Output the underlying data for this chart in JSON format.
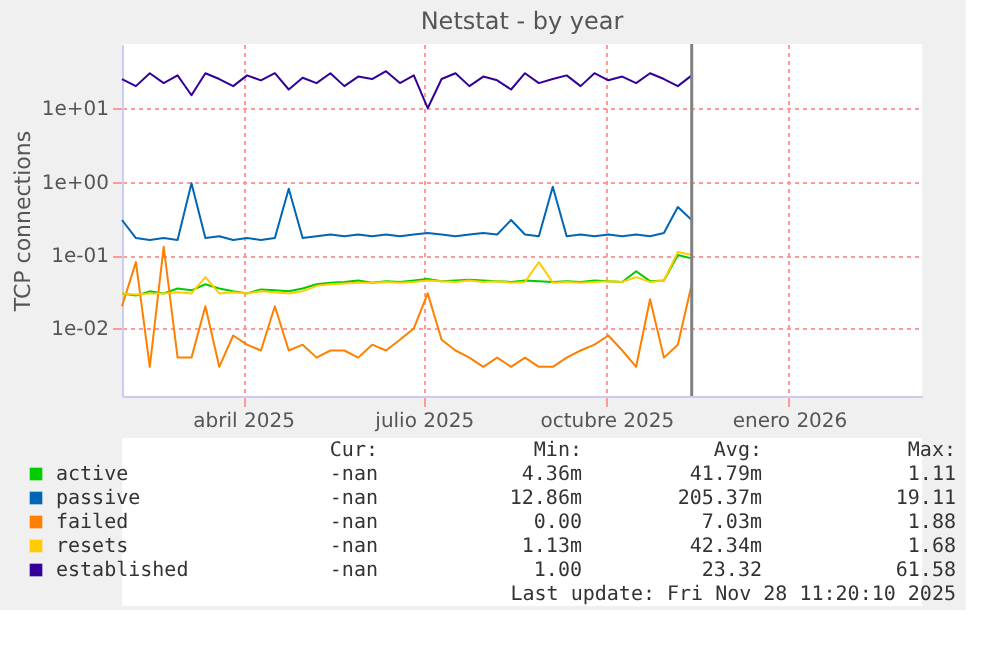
{
  "chart_data": {
    "type": "line",
    "title": "Netstat - by year",
    "ylabel": "TCP connections",
    "x": [
      "2025-02-14",
      "2025-02-21",
      "2025-02-28",
      "2025-03-07",
      "2025-03-14",
      "2025-03-21",
      "2025-03-28",
      "2025-04-04",
      "2025-04-11",
      "2025-04-18",
      "2025-04-25",
      "2025-05-02",
      "2025-05-09",
      "2025-05-16",
      "2025-05-23",
      "2025-05-30",
      "2025-06-06",
      "2025-06-13",
      "2025-06-20",
      "2025-06-27",
      "2025-07-04",
      "2025-07-11",
      "2025-07-18",
      "2025-07-25",
      "2025-08-01",
      "2025-08-08",
      "2025-08-15",
      "2025-08-22",
      "2025-08-29",
      "2025-09-05",
      "2025-09-12",
      "2025-09-19",
      "2025-09-26",
      "2025-10-03",
      "2025-10-10",
      "2025-10-17",
      "2025-10-24",
      "2025-10-31",
      "2025-11-07",
      "2025-11-14",
      "2025-11-21",
      "2025-11-28"
    ],
    "series": [
      {
        "name": "active",
        "color": "#00cc00",
        "values": [
          0.03,
          0.028,
          0.032,
          0.03,
          0.035,
          0.033,
          0.04,
          0.035,
          0.032,
          0.03,
          0.034,
          0.033,
          0.032,
          0.035,
          0.04,
          0.042,
          0.043,
          0.045,
          0.042,
          0.044,
          0.043,
          0.045,
          0.047,
          0.044,
          0.045,
          0.046,
          0.045,
          0.044,
          0.043,
          0.045,
          0.044,
          0.043,
          0.044,
          0.043,
          0.045,
          0.044,
          0.043,
          0.06,
          0.044,
          0.045,
          0.1,
          0.09
        ]
      },
      {
        "name": "passive",
        "color": "#0066b3",
        "values": [
          0.3,
          0.17,
          0.16,
          0.17,
          0.16,
          0.95,
          0.17,
          0.18,
          0.16,
          0.17,
          0.16,
          0.17,
          0.8,
          0.17,
          0.18,
          0.19,
          0.18,
          0.19,
          0.18,
          0.19,
          0.18,
          0.19,
          0.2,
          0.19,
          0.18,
          0.19,
          0.2,
          0.19,
          0.3,
          0.19,
          0.18,
          0.85,
          0.18,
          0.19,
          0.18,
          0.19,
          0.18,
          0.19,
          0.18,
          0.2,
          0.45,
          0.3
        ]
      },
      {
        "name": "failed",
        "color": "#ff8000",
        "values": [
          0.02,
          0.08,
          0.003,
          0.13,
          0.004,
          0.004,
          0.02,
          0.003,
          0.008,
          0.006,
          0.005,
          0.02,
          0.005,
          0.006,
          0.004,
          0.005,
          0.005,
          0.004,
          0.006,
          0.005,
          0.007,
          0.01,
          0.03,
          0.007,
          0.005,
          0.004,
          0.003,
          0.004,
          0.003,
          0.004,
          0.003,
          0.003,
          0.004,
          0.005,
          0.006,
          0.008,
          0.005,
          0.003,
          0.025,
          0.004,
          0.006,
          0.04
        ]
      },
      {
        "name": "resets",
        "color": "#ffcc00",
        "values": [
          0.03,
          0.029,
          0.03,
          0.03,
          0.031,
          0.03,
          0.05,
          0.03,
          0.031,
          0.03,
          0.032,
          0.031,
          0.03,
          0.032,
          0.038,
          0.04,
          0.041,
          0.042,
          0.042,
          0.043,
          0.042,
          0.043,
          0.045,
          0.044,
          0.043,
          0.045,
          0.043,
          0.044,
          0.042,
          0.043,
          0.08,
          0.042,
          0.043,
          0.042,
          0.043,
          0.044,
          0.043,
          0.05,
          0.043,
          0.045,
          0.11,
          0.1
        ]
      },
      {
        "name": "established",
        "color": "#330099",
        "values": [
          25,
          20,
          30,
          22,
          28,
          15,
          30,
          25,
          20,
          28,
          24,
          30,
          18,
          26,
          22,
          30,
          20,
          27,
          25,
          32,
          22,
          28,
          10,
          25,
          30,
          20,
          27,
          24,
          18,
          30,
          22,
          25,
          28,
          20,
          30,
          24,
          27,
          22,
          30,
          25,
          20,
          28
        ]
      }
    ],
    "xlim": [
      "2025-02-14",
      "2026-03-24"
    ],
    "xticks": [
      {
        "value": "2025-04-16",
        "label": "abril 2025"
      },
      {
        "value": "2025-07-16",
        "label": "julio 2025"
      },
      {
        "value": "2025-10-16",
        "label": "octubre 2025"
      },
      {
        "value": "2026-01-16",
        "label": "enero 2026"
      }
    ],
    "ylim": [
      0.0012,
      75
    ],
    "yticks": [
      {
        "value": 0.01,
        "label": "1e-02"
      },
      {
        "value": 0.1,
        "label": "1e-01"
      },
      {
        "value": 1,
        "label": "1e+00"
      },
      {
        "value": 10,
        "label": "1e+01"
      }
    ],
    "log": true,
    "grid": true,
    "marker": "none",
    "line_style": "solid",
    "legend": "bottom",
    "ref_lines": [
      {
        "axis": "x",
        "value": "2025-11-28",
        "color": "#808080"
      }
    ],
    "annotations": [
      "Cur:",
      "Min:",
      "Avg:",
      "Max:",
      "-nan",
      "4.36m",
      "41.79m",
      "1.11",
      "-nan",
      "12.86m",
      "205.37m",
      "19.11",
      "-nan",
      "0.00",
      "7.03m",
      "1.88",
      "-nan",
      "1.13m",
      "42.34m",
      "1.68",
      "-nan",
      "1.00",
      "23.32",
      "61.58",
      "Last update: Fri Nov 28 11:20:10 2025"
    ]
  }
}
